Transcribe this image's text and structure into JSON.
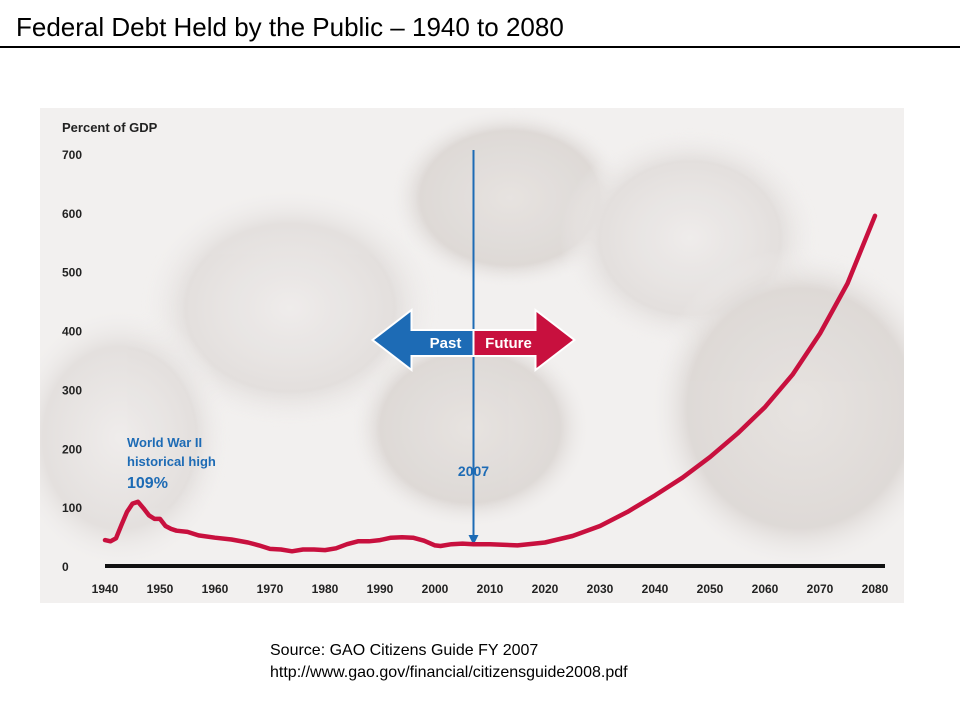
{
  "slide": {
    "title": "Federal Debt Held by the Public – 1940 to 2080"
  },
  "source": {
    "line1": "Source: GAO Citizens Guide FY 2007",
    "line2": "http://www.gao.gov/financial/citizensguide2008.pdf"
  },
  "colors": {
    "series": "#c8103e",
    "annotation_blue": "#1d6bb5",
    "past_arrow": "#1d6bb5",
    "future_arrow": "#c8103e"
  },
  "chart_data": {
    "type": "line",
    "title": "",
    "ylabel": "Percent of GDP",
    "xlabel": "",
    "xlim": [
      1940,
      2080
    ],
    "ylim": [
      0,
      700
    ],
    "grid": false,
    "yticks": [
      0,
      100,
      200,
      300,
      400,
      500,
      600,
      700
    ],
    "xticks": [
      1940,
      1950,
      1960,
      1970,
      1980,
      1990,
      2000,
      2010,
      2020,
      2030,
      2040,
      2050,
      2060,
      2070,
      2080
    ],
    "series": [
      {
        "name": "Debt held by the public",
        "x": [
          1940,
          1941,
          1942,
          1943,
          1944,
          1945,
          1946,
          1947,
          1948,
          1949,
          1950,
          1951,
          1952,
          1953,
          1955,
          1957,
          1960,
          1963,
          1966,
          1968,
          1970,
          1972,
          1974,
          1976,
          1978,
          1980,
          1982,
          1984,
          1986,
          1988,
          1990,
          1992,
          1994,
          1996,
          1998,
          2000,
          2001,
          2003,
          2005,
          2007,
          2010,
          2015,
          2020,
          2025,
          2030,
          2035,
          2040,
          2045,
          2050,
          2055,
          2060,
          2065,
          2070,
          2075,
          2080
        ],
        "values": [
          44,
          42,
          47,
          70,
          92,
          106,
          109,
          98,
          86,
          80,
          80,
          68,
          63,
          60,
          58,
          52,
          48,
          45,
          40,
          35,
          29,
          28,
          25,
          28,
          28,
          27,
          30,
          37,
          42,
          42,
          44,
          48,
          49,
          48,
          43,
          35,
          34,
          37,
          38,
          37,
          37,
          35,
          40,
          51,
          68,
          92,
          120,
          150,
          185,
          225,
          270,
          325,
          395,
          480,
          595
        ]
      }
    ],
    "annotations": {
      "wwii_line1": "World War II",
      "wwii_line2": "historical high",
      "wwii_value": "109%",
      "divider_label": "2007",
      "divider_year": 2007,
      "past_label": "Past",
      "future_label": "Future"
    }
  }
}
